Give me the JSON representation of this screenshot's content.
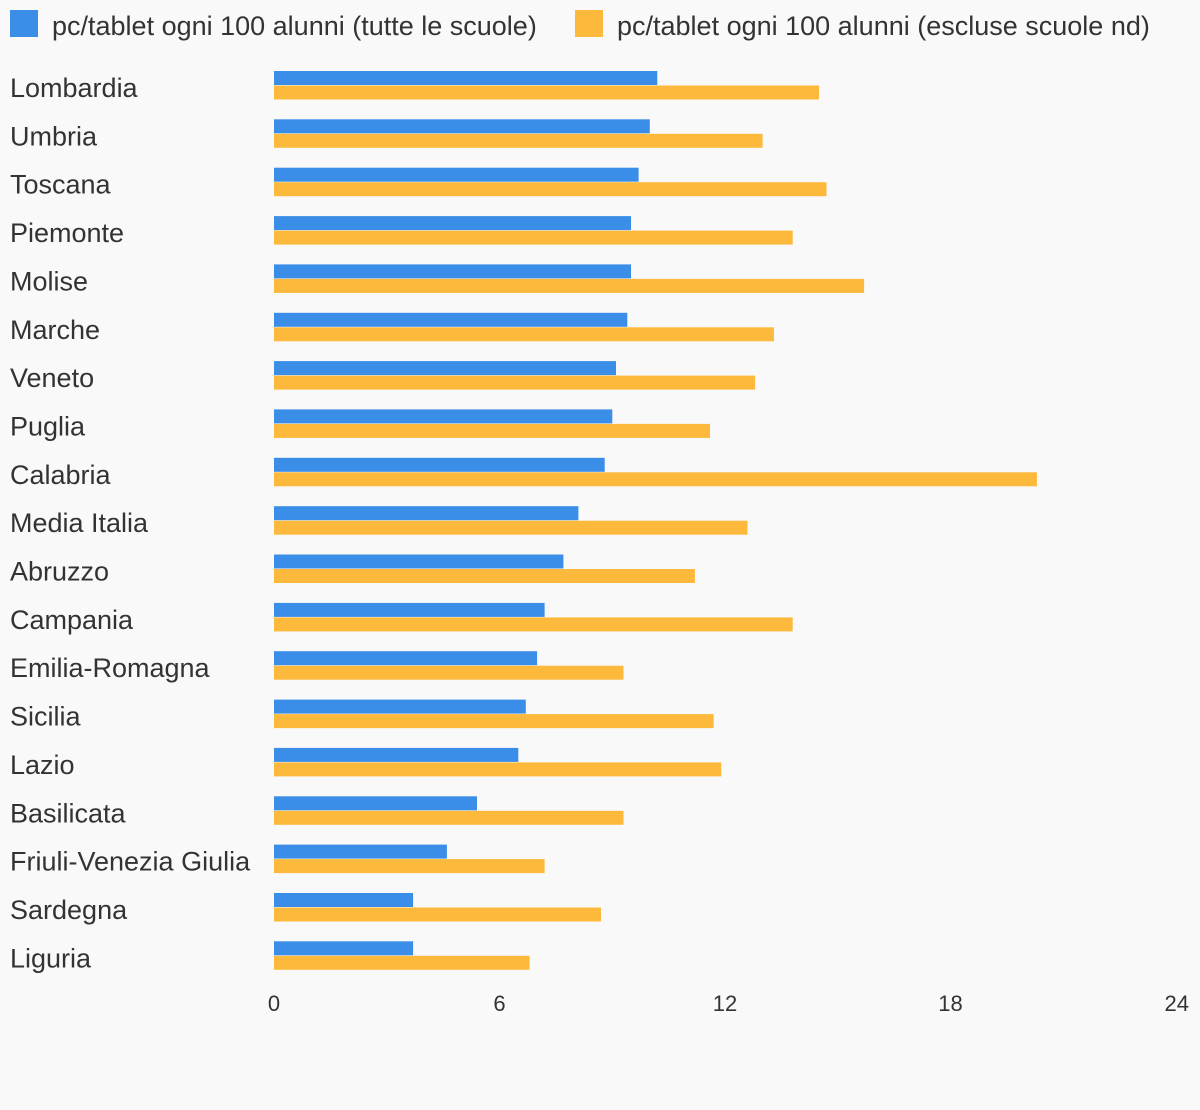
{
  "chart_data": {
    "type": "bar",
    "orientation": "horizontal",
    "title": "",
    "xlabel": "",
    "ylabel": "",
    "xlim": [
      0,
      24
    ],
    "x_ticks": [
      "0",
      "6",
      "12",
      "18",
      "24"
    ],
    "grid": false,
    "legend_position": "top",
    "categories": [
      "Lombardia",
      "Umbria",
      "Toscana",
      "Piemonte",
      "Molise",
      "Marche",
      "Veneto",
      "Puglia",
      "Calabria",
      "Media Italia",
      "Abruzzo",
      "Campania",
      "Emilia-Romagna",
      "Sicilia",
      "Lazio",
      "Basilicata",
      "Friuli-Venezia Giulia",
      "Sardegna",
      "Liguria"
    ],
    "series": [
      {
        "name": "pc/tablet ogni 100 alunni (tutte le scuole)",
        "color": "#3b8ee8",
        "values": [
          10.2,
          10.0,
          9.7,
          9.5,
          9.5,
          9.4,
          9.1,
          9.0,
          8.8,
          8.1,
          7.7,
          7.2,
          7.0,
          6.7,
          6.5,
          5.4,
          4.6,
          3.7,
          3.7
        ]
      },
      {
        "name": "pc/tablet ogni 100 alunni (escluse scuole nd)",
        "color": "#fdb93b",
        "values": [
          14.5,
          13.0,
          14.7,
          13.8,
          15.7,
          13.3,
          12.8,
          11.6,
          20.3,
          12.6,
          11.2,
          13.8,
          9.3,
          11.7,
          11.9,
          9.3,
          7.2,
          8.7,
          6.8
        ]
      }
    ]
  }
}
